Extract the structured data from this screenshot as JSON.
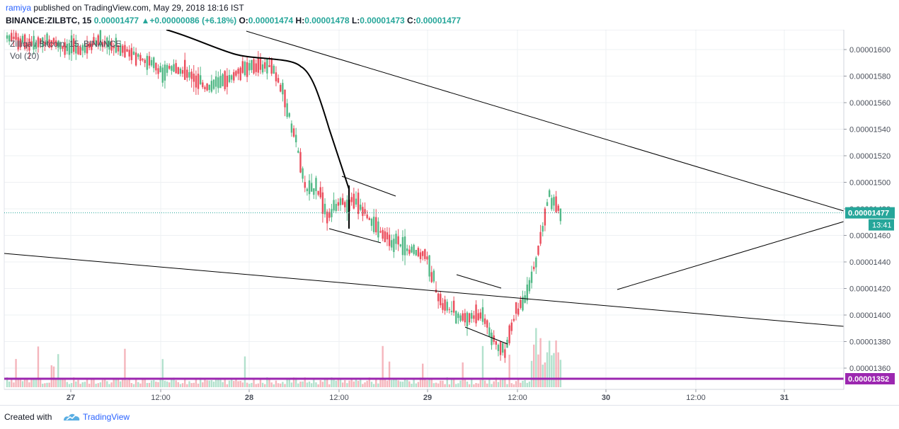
{
  "header": {
    "user": "ramiya",
    "published": "published on TradingView.com, May 29, 2018 18:16 IST",
    "symbol": "BINANCE:ZILBTC, 15",
    "last": "0.00001477",
    "arrow": "▲",
    "change": "+0.00000086 (+6.18%)",
    "o_label": "O:",
    "o": "0.00001474",
    "h_label": "H:",
    "h": "0.00001478",
    "l_label": "L:",
    "l": "0.00001473",
    "c_label": "C:",
    "c": "0.00001477"
  },
  "legend": {
    "title": "Zilliqa / Bitcoin, 15, BINANCE",
    "volume": "Vol (20)"
  },
  "footer": {
    "created_with": "Created with",
    "brand": "TradingView"
  },
  "colors": {
    "up": "#53b987",
    "down": "#eb4d5c",
    "support_line": "#9c27b0",
    "current_price_label": "#26a69a"
  },
  "chart_data": {
    "type": "candlestick",
    "symbol": "ZILBTC",
    "interval": "15",
    "ylim": [
      1.34e-05,
      1.62e-05
    ],
    "y_ticks": [
      "0.00001360",
      "0.00001380",
      "0.00001400",
      "0.00001420",
      "0.00001440",
      "0.00001460",
      "0.00001480",
      "0.00001500",
      "0.00001520",
      "0.00001540",
      "0.00001560",
      "0.00001580",
      "0.00001600"
    ],
    "x_ticks": [
      "27",
      "12:00",
      "28",
      "12:00",
      "29",
      "12:00",
      "30",
      "12:00",
      "31"
    ],
    "current_price": "0.00001477",
    "countdown": "13:41",
    "support_price": "0.00001352",
    "price_path": [
      [
        1.608e-05,
        1.61e-05
      ],
      [
        1.604e-05,
        1.612e-05
      ],
      [
        1.6e-05,
        1.608e-05
      ],
      [
        1.602e-05,
        1.61e-05
      ],
      [
        1.604e-05,
        1.606e-05
      ],
      [
        1.598e-05,
        1.606e-05
      ],
      [
        1.6e-05,
        1.604e-05
      ],
      [
        1.596e-05,
        1.602e-05
      ],
      [
        1.606e-05,
        1.608e-05
      ],
      [
        1.602e-05,
        1.606e-05
      ],
      [
        1.598e-05,
        1.604e-05
      ],
      [
        1.596e-05,
        1.6e-05
      ],
      [
        1.59e-05,
        1.598e-05
      ],
      [
        1.586e-05,
        1.592e-05
      ],
      [
        1.58e-05,
        1.588e-05
      ],
      [
        1.584e-05,
        1.59e-05
      ],
      [
        1.586e-05,
        1.582e-05
      ],
      [
        1.576e-05,
        1.58e-05
      ],
      [
        1.566e-05,
        1.574e-05
      ],
      [
        1.572e-05,
        1.576e-05
      ],
      [
        1.578e-05,
        1.582e-05
      ],
      [
        1.58e-05,
        1.584e-05
      ],
      [
        1.584e-05,
        1.588e-05
      ],
      [
        1.582e-05,
        1.592e-05
      ],
      [
        1.59e-05,
        1.584e-05
      ],
      [
        1.56e-05,
        1.572e-05
      ],
      [
        1.54e-05,
        1.53e-05
      ],
      [
        1.51e-05,
        1.48e-05
      ],
      [
        1.49e-05,
        1.5e-05
      ],
      [
        1.48e-05,
        1.472e-05
      ],
      [
        1.48e-05,
        1.486e-05
      ],
      [
        1.484e-05,
        1.49e-05
      ],
      [
        1.478e-05,
        1.486e-05
      ],
      [
        1.472e-05,
        1.466e-05
      ],
      [
        1.462e-05,
        1.458e-05
      ],
      [
        1.458e-05,
        1.452e-05
      ],
      [
        1.452e-05,
        1.448e-05
      ],
      [
        1.448e-05,
        1.446e-05
      ],
      [
        1.446e-05,
        1.44e-05
      ],
      [
        1.416e-05,
        1.406e-05
      ],
      [
        1.408e-05,
        1.4e-05
      ],
      [
        1.4e-05,
        1.396e-05
      ],
      [
        1.404e-05,
        1.394e-05
      ],
      [
        1.41e-05,
        1.39e-05
      ],
      [
        1.384e-05,
        1.376e-05
      ],
      [
        1.37e-05,
        1.376e-05
      ],
      [
        1.396e-05,
        1.408e-05
      ],
      [
        1.414e-05,
        1.418e-05
      ],
      [
        1.438e-05,
        1.46e-05
      ],
      [
        1.496e-05,
        1.486e-05
      ],
      [
        1.474e-05,
        1.477e-05
      ]
    ],
    "volume_scale": "relative"
  }
}
